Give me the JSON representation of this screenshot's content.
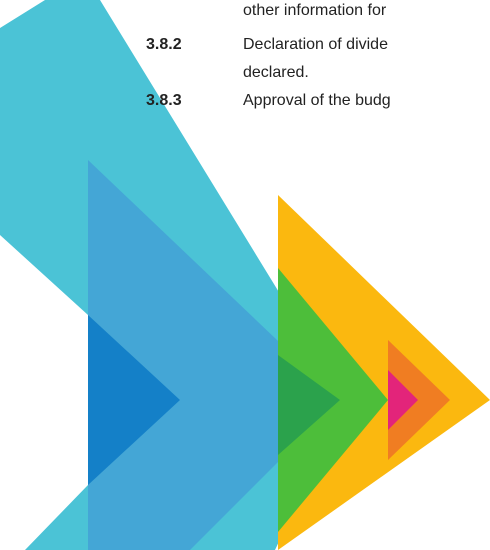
{
  "items": [
    {
      "text": "other information for"
    },
    {
      "number": "3.8.2",
      "text": "Declaration of divide"
    },
    {
      "text": "declared."
    },
    {
      "number": "3.8.3",
      "text": "Approval of the budg"
    }
  ]
}
